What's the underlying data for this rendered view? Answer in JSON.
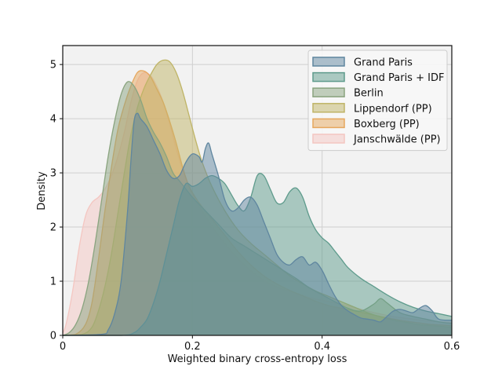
{
  "chart_data": {
    "type": "area",
    "title": "",
    "xlabel": "Weighted binary cross-entropy loss",
    "ylabel": "Density",
    "xlim": [
      0,
      0.6
    ],
    "ylim": [
      0,
      5.35
    ],
    "xticks": [
      0,
      0.2,
      0.4,
      0.6
    ],
    "xtick_labels": [
      "0",
      "0.2",
      "0.4",
      "0.6"
    ],
    "yticks": [
      0,
      1,
      2,
      3,
      4,
      5
    ],
    "ytick_labels": [
      "0",
      "1",
      "2",
      "3",
      "4",
      "5"
    ],
    "grid": true,
    "legend_position": "top-right",
    "series": [
      {
        "name": "Janschwälde (PP)",
        "color": "#f4c6c1",
        "points": [
          [
            0,
            0.05
          ],
          [
            0.005,
            0.2
          ],
          [
            0.015,
            0.8
          ],
          [
            0.025,
            1.6
          ],
          [
            0.035,
            2.2
          ],
          [
            0.045,
            2.45
          ],
          [
            0.055,
            2.55
          ],
          [
            0.065,
            2.7
          ],
          [
            0.075,
            2.95
          ],
          [
            0.085,
            3.3
          ],
          [
            0.095,
            3.75
          ],
          [
            0.105,
            4.3
          ],
          [
            0.115,
            4.7
          ],
          [
            0.125,
            4.85
          ],
          [
            0.135,
            4.8
          ],
          [
            0.145,
            4.6
          ],
          [
            0.155,
            4.3
          ],
          [
            0.165,
            3.9
          ],
          [
            0.175,
            3.45
          ],
          [
            0.185,
            3.05
          ],
          [
            0.2,
            2.6
          ],
          [
            0.22,
            2.2
          ],
          [
            0.24,
            1.85
          ],
          [
            0.26,
            1.55
          ],
          [
            0.28,
            1.3
          ],
          [
            0.3,
            1.1
          ],
          [
            0.32,
            0.95
          ],
          [
            0.34,
            0.85
          ],
          [
            0.36,
            0.78
          ],
          [
            0.38,
            0.7
          ],
          [
            0.4,
            0.65
          ],
          [
            0.42,
            0.6
          ],
          [
            0.44,
            0.55
          ],
          [
            0.46,
            0.48
          ],
          [
            0.48,
            0.42
          ],
          [
            0.5,
            0.37
          ],
          [
            0.52,
            0.33
          ],
          [
            0.54,
            0.3
          ],
          [
            0.56,
            0.27
          ],
          [
            0.58,
            0.25
          ],
          [
            0.6,
            0.24
          ]
        ]
      },
      {
        "name": "Boxberg (PP)",
        "color": "#e6a75e",
        "points": [
          [
            0,
            0
          ],
          [
            0.02,
            0.02
          ],
          [
            0.035,
            0.2
          ],
          [
            0.045,
            0.6
          ],
          [
            0.055,
            1.4
          ],
          [
            0.065,
            2.3
          ],
          [
            0.075,
            3.1
          ],
          [
            0.085,
            3.8
          ],
          [
            0.095,
            4.25
          ],
          [
            0.105,
            4.6
          ],
          [
            0.115,
            4.85
          ],
          [
            0.125,
            4.88
          ],
          [
            0.135,
            4.78
          ],
          [
            0.145,
            4.55
          ],
          [
            0.155,
            4.3
          ],
          [
            0.165,
            3.95
          ],
          [
            0.175,
            3.55
          ],
          [
            0.185,
            3.1
          ],
          [
            0.195,
            2.75
          ],
          [
            0.21,
            2.45
          ],
          [
            0.23,
            2.15
          ],
          [
            0.25,
            1.85
          ],
          [
            0.27,
            1.55
          ],
          [
            0.29,
            1.3
          ],
          [
            0.31,
            1.1
          ],
          [
            0.33,
            0.95
          ],
          [
            0.35,
            0.83
          ],
          [
            0.37,
            0.73
          ],
          [
            0.39,
            0.63
          ],
          [
            0.41,
            0.55
          ],
          [
            0.43,
            0.5
          ],
          [
            0.45,
            0.45
          ],
          [
            0.47,
            0.4
          ],
          [
            0.49,
            0.35
          ],
          [
            0.51,
            0.3
          ],
          [
            0.53,
            0.26
          ],
          [
            0.55,
            0.23
          ],
          [
            0.57,
            0.2
          ],
          [
            0.6,
            0.18
          ]
        ]
      },
      {
        "name": "Lippendorf (PP)",
        "color": "#bfb466",
        "points": [
          [
            0,
            0
          ],
          [
            0.03,
            0.02
          ],
          [
            0.045,
            0.15
          ],
          [
            0.055,
            0.45
          ],
          [
            0.065,
            0.9
          ],
          [
            0.075,
            1.5
          ],
          [
            0.085,
            2.25
          ],
          [
            0.095,
            3.0
          ],
          [
            0.105,
            3.7
          ],
          [
            0.115,
            4.2
          ],
          [
            0.125,
            4.55
          ],
          [
            0.135,
            4.8
          ],
          [
            0.145,
            5.0
          ],
          [
            0.155,
            5.08
          ],
          [
            0.165,
            5.05
          ],
          [
            0.175,
            4.85
          ],
          [
            0.185,
            4.5
          ],
          [
            0.195,
            4.05
          ],
          [
            0.205,
            3.6
          ],
          [
            0.215,
            3.2
          ],
          [
            0.23,
            2.75
          ],
          [
            0.25,
            2.3
          ],
          [
            0.27,
            1.95
          ],
          [
            0.29,
            1.7
          ],
          [
            0.31,
            1.5
          ],
          [
            0.33,
            1.3
          ],
          [
            0.35,
            1.1
          ],
          [
            0.37,
            0.95
          ],
          [
            0.39,
            0.82
          ],
          [
            0.41,
            0.72
          ],
          [
            0.43,
            0.62
          ],
          [
            0.45,
            0.52
          ],
          [
            0.47,
            0.42
          ],
          [
            0.49,
            0.34
          ],
          [
            0.51,
            0.28
          ],
          [
            0.53,
            0.24
          ],
          [
            0.55,
            0.2
          ],
          [
            0.6,
            0.15
          ]
        ]
      },
      {
        "name": "Berlin",
        "color": "#8aa47f",
        "points": [
          [
            0,
            0
          ],
          [
            0.01,
            0.05
          ],
          [
            0.02,
            0.2
          ],
          [
            0.03,
            0.5
          ],
          [
            0.04,
            1.0
          ],
          [
            0.05,
            1.7
          ],
          [
            0.06,
            2.5
          ],
          [
            0.07,
            3.3
          ],
          [
            0.08,
            3.95
          ],
          [
            0.09,
            4.45
          ],
          [
            0.1,
            4.68
          ],
          [
            0.11,
            4.6
          ],
          [
            0.12,
            4.35
          ],
          [
            0.13,
            4.0
          ],
          [
            0.14,
            3.75
          ],
          [
            0.15,
            3.55
          ],
          [
            0.16,
            3.3
          ],
          [
            0.17,
            3.0
          ],
          [
            0.18,
            2.85
          ],
          [
            0.19,
            2.7
          ],
          [
            0.2,
            2.55
          ],
          [
            0.22,
            2.3
          ],
          [
            0.24,
            2.05
          ],
          [
            0.26,
            1.8
          ],
          [
            0.28,
            1.65
          ],
          [
            0.3,
            1.5
          ],
          [
            0.32,
            1.35
          ],
          [
            0.34,
            1.2
          ],
          [
            0.36,
            1.05
          ],
          [
            0.38,
            0.88
          ],
          [
            0.4,
            0.75
          ],
          [
            0.42,
            0.62
          ],
          [
            0.44,
            0.5
          ],
          [
            0.46,
            0.45
          ],
          [
            0.48,
            0.58
          ],
          [
            0.49,
            0.68
          ],
          [
            0.5,
            0.6
          ],
          [
            0.52,
            0.42
          ],
          [
            0.54,
            0.35
          ],
          [
            0.56,
            0.3
          ],
          [
            0.58,
            0.25
          ],
          [
            0.6,
            0.22
          ]
        ]
      },
      {
        "name": "Grand Paris + IDF",
        "color": "#5e9b8c",
        "points": [
          [
            0,
            0
          ],
          [
            0.09,
            0
          ],
          [
            0.11,
            0.05
          ],
          [
            0.12,
            0.15
          ],
          [
            0.13,
            0.3
          ],
          [
            0.14,
            0.6
          ],
          [
            0.15,
            1.0
          ],
          [
            0.16,
            1.5
          ],
          [
            0.17,
            2.0
          ],
          [
            0.18,
            2.5
          ],
          [
            0.19,
            2.8
          ],
          [
            0.2,
            2.75
          ],
          [
            0.21,
            2.8
          ],
          [
            0.22,
            2.9
          ],
          [
            0.23,
            2.95
          ],
          [
            0.24,
            2.9
          ],
          [
            0.25,
            2.8
          ],
          [
            0.26,
            2.6
          ],
          [
            0.27,
            2.4
          ],
          [
            0.28,
            2.3
          ],
          [
            0.29,
            2.55
          ],
          [
            0.3,
            2.95
          ],
          [
            0.31,
            2.95
          ],
          [
            0.32,
            2.7
          ],
          [
            0.33,
            2.45
          ],
          [
            0.34,
            2.45
          ],
          [
            0.35,
            2.65
          ],
          [
            0.36,
            2.72
          ],
          [
            0.37,
            2.55
          ],
          [
            0.38,
            2.2
          ],
          [
            0.39,
            1.95
          ],
          [
            0.4,
            1.8
          ],
          [
            0.41,
            1.7
          ],
          [
            0.42,
            1.55
          ],
          [
            0.43,
            1.4
          ],
          [
            0.44,
            1.25
          ],
          [
            0.46,
            1.05
          ],
          [
            0.48,
            0.9
          ],
          [
            0.5,
            0.75
          ],
          [
            0.52,
            0.62
          ],
          [
            0.54,
            0.52
          ],
          [
            0.56,
            0.45
          ],
          [
            0.58,
            0.4
          ],
          [
            0.6,
            0.35
          ]
        ]
      },
      {
        "name": "Grand Paris",
        "color": "#5f869f",
        "points": [
          [
            0,
            0
          ],
          [
            0.06,
            0.02
          ],
          [
            0.07,
            0.1
          ],
          [
            0.08,
            0.4
          ],
          [
            0.09,
            1.0
          ],
          [
            0.1,
            2.3
          ],
          [
            0.105,
            3.2
          ],
          [
            0.11,
            3.95
          ],
          [
            0.115,
            4.1
          ],
          [
            0.12,
            4.0
          ],
          [
            0.13,
            3.85
          ],
          [
            0.14,
            3.6
          ],
          [
            0.15,
            3.35
          ],
          [
            0.16,
            3.05
          ],
          [
            0.17,
            2.9
          ],
          [
            0.18,
            2.95
          ],
          [
            0.19,
            3.2
          ],
          [
            0.2,
            3.35
          ],
          [
            0.21,
            3.3
          ],
          [
            0.215,
            3.2
          ],
          [
            0.22,
            3.45
          ],
          [
            0.225,
            3.55
          ],
          [
            0.23,
            3.35
          ],
          [
            0.24,
            2.95
          ],
          [
            0.25,
            2.5
          ],
          [
            0.26,
            2.3
          ],
          [
            0.27,
            2.35
          ],
          [
            0.28,
            2.5
          ],
          [
            0.29,
            2.55
          ],
          [
            0.3,
            2.4
          ],
          [
            0.31,
            2.1
          ],
          [
            0.32,
            1.8
          ],
          [
            0.33,
            1.5
          ],
          [
            0.34,
            1.35
          ],
          [
            0.35,
            1.3
          ],
          [
            0.36,
            1.4
          ],
          [
            0.37,
            1.45
          ],
          [
            0.38,
            1.3
          ],
          [
            0.39,
            1.35
          ],
          [
            0.4,
            1.2
          ],
          [
            0.41,
            0.95
          ],
          [
            0.42,
            0.72
          ],
          [
            0.43,
            0.55
          ],
          [
            0.44,
            0.45
          ],
          [
            0.45,
            0.38
          ],
          [
            0.46,
            0.32
          ],
          [
            0.47,
            0.3
          ],
          [
            0.48,
            0.28
          ],
          [
            0.49,
            0.25
          ],
          [
            0.5,
            0.35
          ],
          [
            0.51,
            0.45
          ],
          [
            0.52,
            0.48
          ],
          [
            0.53,
            0.45
          ],
          [
            0.54,
            0.42
          ],
          [
            0.55,
            0.5
          ],
          [
            0.56,
            0.55
          ],
          [
            0.57,
            0.45
          ],
          [
            0.58,
            0.3
          ],
          [
            0.6,
            0.28
          ]
        ]
      }
    ],
    "legend_order": [
      "Grand Paris",
      "Grand Paris + IDF",
      "Berlin",
      "Lippendorf (PP)",
      "Boxberg (PP)",
      "Janschwälde (PP)"
    ]
  }
}
